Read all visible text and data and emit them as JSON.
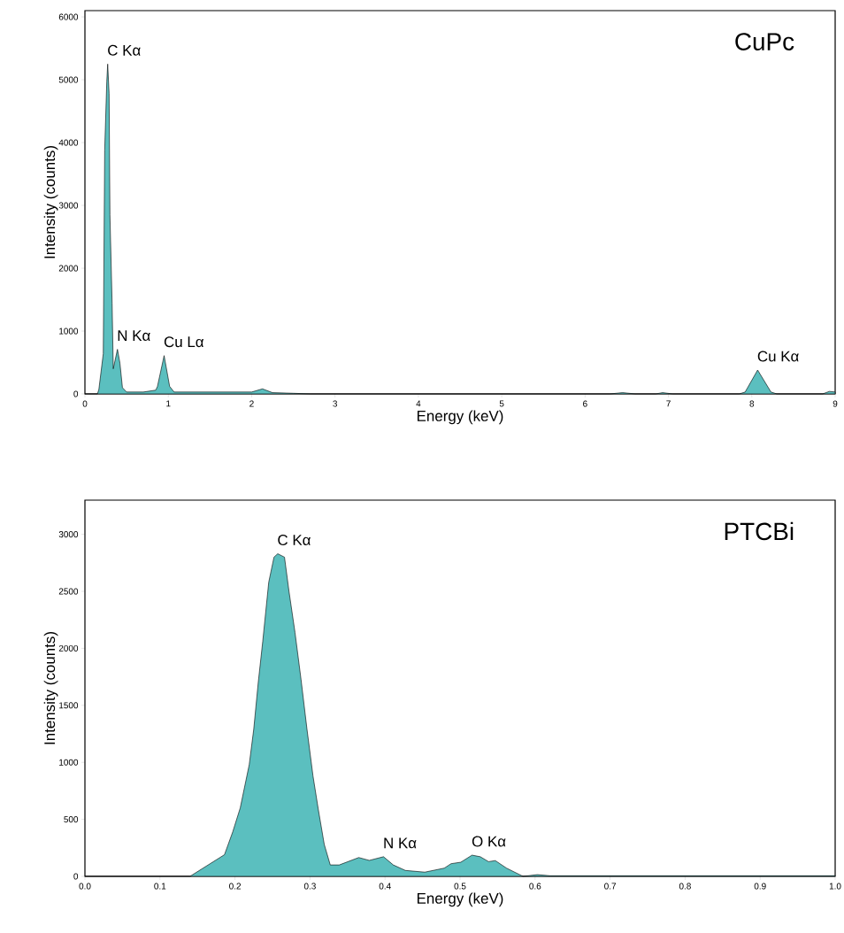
{
  "chart_data": [
    {
      "type": "area",
      "title": "CuPc",
      "xlabel": "Energy (keV)",
      "ylabel": "Intensity (counts)",
      "color": "#5bbfbf",
      "x": [
        0,
        0.15,
        0.167,
        0.22,
        0.237,
        0.262,
        0.273,
        0.29,
        0.3,
        0.326,
        0.34,
        0.39,
        0.42,
        0.45,
        0.5,
        0.7,
        0.85,
        0.87,
        0.95,
        1.016,
        1.07,
        1.5,
        1.8,
        2.0,
        2.13,
        2.25,
        2.5,
        2.7,
        6.3,
        6.45,
        6.6,
        6.85,
        6.93,
        7.05,
        7.85,
        7.92,
        8.07,
        8.23,
        8.3,
        8.85,
        8.93,
        9
      ],
      "values": [
        0,
        0,
        70,
        640,
        3880,
        4970,
        5250,
        4780,
        2850,
        1440,
        400,
        710,
        490,
        100,
        30,
        30,
        60,
        120,
        610,
        120,
        30,
        30,
        30,
        30,
        80,
        20,
        10,
        0,
        0,
        20,
        0,
        0,
        20,
        0,
        0,
        30,
        380,
        30,
        0,
        0,
        40,
        30
      ],
      "xlim": [
        0,
        9
      ],
      "ylim": [
        0,
        6100
      ],
      "xticks": [
        0,
        1,
        2,
        3,
        4,
        5,
        6,
        7,
        8,
        9
      ],
      "yticks": [
        0,
        1000,
        2000,
        3000,
        4000,
        5000,
        6000
      ],
      "annotations": [
        {
          "text": "C Kα",
          "x": 0.273,
          "y": 5250
        },
        {
          "text": "N Kα",
          "x": 0.39,
          "y": 710
        },
        {
          "text": "Cu Lα",
          "x": 0.95,
          "y": 610
        },
        {
          "text": "Cu Kα",
          "x": 8.07,
          "y": 380
        }
      ]
    },
    {
      "type": "area",
      "title": "PTCBi",
      "xlabel": "Energy (keV)",
      "ylabel": "Intensity (counts)",
      "color": "#5bbfbf",
      "x": [
        0,
        0.14,
        0.186,
        0.197,
        0.207,
        0.219,
        0.225,
        0.231,
        0.237,
        0.245,
        0.252,
        0.257,
        0.266,
        0.272,
        0.28,
        0.288,
        0.296,
        0.304,
        0.311,
        0.319,
        0.327,
        0.339,
        0.365,
        0.379,
        0.398,
        0.411,
        0.427,
        0.453,
        0.479,
        0.488,
        0.501,
        0.516,
        0.527,
        0.538,
        0.547,
        0.562,
        0.584,
        0.603,
        0.62,
        1.0
      ],
      "values": [
        0,
        0,
        190,
        390,
        600,
        980,
        1290,
        1700,
        2060,
        2580,
        2800,
        2830,
        2800,
        2500,
        2140,
        1730,
        1290,
        880,
        590,
        280,
        100,
        100,
        165,
        140,
        172,
        100,
        52,
        37,
        72,
        111,
        124,
        186,
        172,
        129,
        138,
        72,
        0,
        15,
        5,
        5
      ],
      "xlim": [
        0,
        1
      ],
      "ylim": [
        0,
        3300
      ],
      "xticks": [
        {
          "value": 0,
          "label": "0.0"
        },
        {
          "value": 0.1,
          "label": "0.1"
        },
        {
          "value": 0.2,
          "label": "0.2"
        },
        {
          "value": 0.3,
          "label": "0.3"
        },
        {
          "value": 0.4,
          "label": "0.4"
        },
        {
          "value": 0.5,
          "label": "0.5"
        },
        {
          "value": 0.6,
          "label": "0.6"
        },
        {
          "value": 0.7,
          "label": "0.7"
        },
        {
          "value": 0.8,
          "label": "0.8"
        },
        {
          "value": 0.9,
          "label": "0.9"
        },
        {
          "value": 1,
          "label": "1.0"
        }
      ],
      "yticks": [
        0,
        500,
        1000,
        1500,
        2000,
        2500,
        3000
      ],
      "annotations": [
        {
          "text": "C Kα",
          "x": 0.257,
          "y": 2830
        },
        {
          "text": "N Kα",
          "x": 0.398,
          "y": 172
        },
        {
          "text": "O Kα",
          "x": 0.516,
          "y": 186
        }
      ]
    }
  ]
}
